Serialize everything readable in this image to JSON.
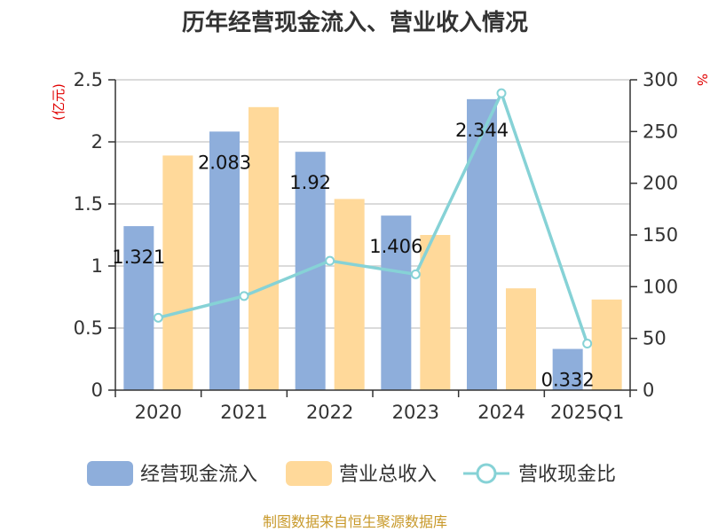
{
  "chart_data": {
    "type": "bar",
    "title": "历年经营现金流入、营业收入情况",
    "categories": [
      "2020",
      "2021",
      "2022",
      "2023",
      "2024",
      "2025Q1"
    ],
    "left_unit": "(亿元)",
    "right_unit": "%",
    "left_axis": {
      "range": [
        0,
        2.5
      ],
      "ticks": [
        "0",
        "0.5",
        "1",
        "1.5",
        "2",
        "2.5"
      ],
      "tick_values": [
        0,
        0.5,
        1,
        1.5,
        2,
        2.5
      ]
    },
    "right_axis": {
      "range": [
        0,
        300
      ],
      "ticks": [
        "0",
        "50",
        "100",
        "150",
        "200",
        "250",
        "300"
      ],
      "tick_values": [
        0,
        50,
        100,
        150,
        200,
        250,
        300
      ]
    },
    "grid": true,
    "legend_position": "bottom",
    "series": [
      {
        "name": "经营现金流入",
        "kind": "bar",
        "axis": "left",
        "color": "#8eaedb",
        "values": [
          1.321,
          2.083,
          1.92,
          1.406,
          2.344,
          0.332
        ],
        "labels": [
          "1.321",
          "2.083",
          "1.92",
          "1.406",
          "2.344",
          "0.332"
        ]
      },
      {
        "name": "营业总收入",
        "kind": "bar",
        "axis": "left",
        "color": "#ffd99a",
        "values": [
          1.89,
          2.28,
          1.54,
          1.25,
          0.82,
          0.73
        ]
      },
      {
        "name": "营收现金比",
        "kind": "line",
        "axis": "right",
        "color": "#86d2d6",
        "values": [
          70,
          91,
          125,
          112,
          287,
          45
        ]
      }
    ]
  },
  "footer": "制图数据来自恒生聚源数据库"
}
